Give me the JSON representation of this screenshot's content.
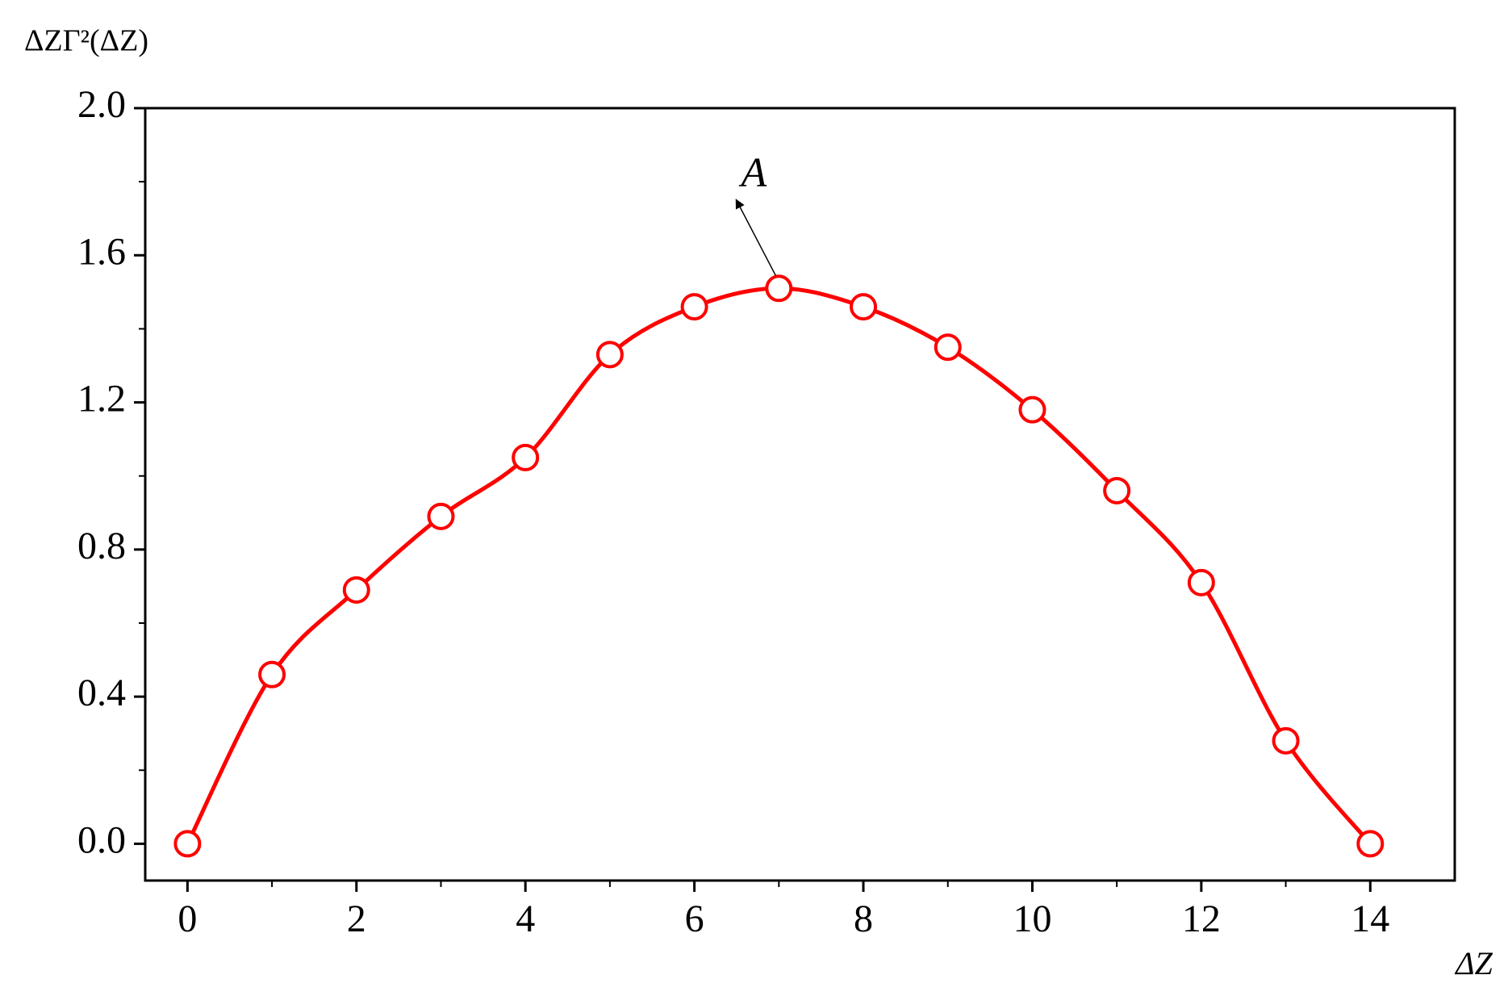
{
  "chart_data": {
    "type": "line",
    "y_label": "ΔZΓ²(ΔZ)",
    "x_label": "ΔZ",
    "annotation": "A",
    "x": [
      0,
      1,
      2,
      3,
      4,
      5,
      6,
      7,
      8,
      9,
      10,
      11,
      12,
      13,
      14
    ],
    "series": [
      {
        "color": "#ff0000",
        "values": [
          0,
          0.46,
          0.69,
          0.89,
          1.05,
          1.33,
          1.46,
          1.51,
          1.46,
          1.35,
          1.18,
          0.96,
          0.71,
          0.28,
          0
        ]
      }
    ],
    "xlim": [
      -0.5,
      15
    ],
    "ylim": [
      -0.1,
      2.0
    ],
    "xticks": [
      0,
      2,
      4,
      6,
      8,
      10,
      12,
      14
    ],
    "yticks": [
      {
        "value": 0,
        "label": "0.0"
      },
      {
        "value": 0.4,
        "label": "0.4"
      },
      {
        "value": 0.8,
        "label": "0.8"
      },
      {
        "value": 1.2,
        "label": "1.2"
      },
      {
        "value": 1.6,
        "label": "1.6"
      },
      {
        "value": 2.0,
        "label": "2.0"
      }
    ],
    "annotation_point": 7
  }
}
